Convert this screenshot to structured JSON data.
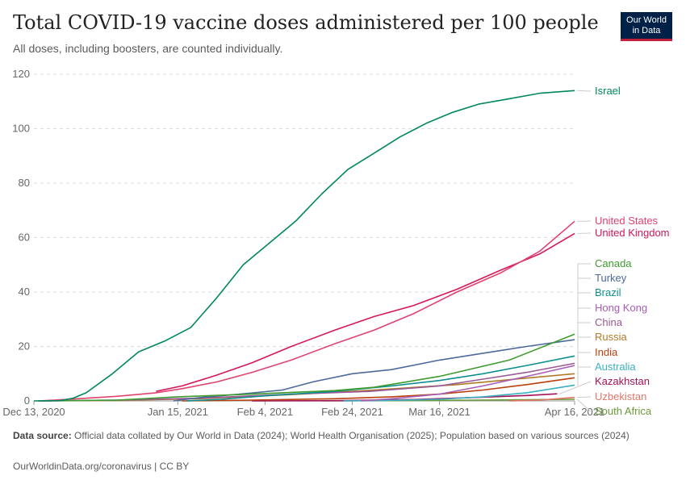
{
  "header": {
    "title": "Total COVID-19 vaccine doses administered per 100 people",
    "subtitle": "All doses, including boosters, are counted individually.",
    "logo_line1": "Our World",
    "logo_line2": "in Data"
  },
  "footer": {
    "source_label": "Data source:",
    "source_text": "Official data collated by Our World in Data (2024); World Health Organisation (2025); Population based on various sources (2024)",
    "url": "OurWorldinData.org/coronavirus | CC BY"
  },
  "chart_data": {
    "type": "line",
    "title": "Total COVID-19 vaccine doses administered per 100 people",
    "xlabel": "",
    "ylabel": "",
    "ylim": [
      0,
      120
    ],
    "yticks": [
      0,
      20,
      40,
      60,
      80,
      100,
      120
    ],
    "xticks": [
      {
        "date": "2020-12-13",
        "label": "Dec 13, 2020"
      },
      {
        "date": "2021-01-15",
        "label": "Jan 15, 2021"
      },
      {
        "date": "2021-02-04",
        "label": "Feb 4, 2021"
      },
      {
        "date": "2021-02-24",
        "label": "Feb 24, 2021"
      },
      {
        "date": "2021-03-16",
        "label": "Mar 16, 2021"
      },
      {
        "date": "2021-04-16",
        "label": "Apr 16, 2021"
      }
    ],
    "xrange": [
      "2020-12-13",
      "2021-04-16"
    ],
    "grid": "horizontal dashed",
    "legend": "right, labels at line ends",
    "series": [
      {
        "name": "Israel",
        "color": "#00875e",
        "points": [
          [
            "2020-12-13",
            0
          ],
          [
            "2020-12-19",
            0.1
          ],
          [
            "2020-12-22",
            1
          ],
          [
            "2020-12-25",
            3
          ],
          [
            "2020-12-31",
            10
          ],
          [
            "2021-01-06",
            18
          ],
          [
            "2021-01-12",
            22
          ],
          [
            "2021-01-18",
            27
          ],
          [
            "2021-01-24",
            38
          ],
          [
            "2021-01-30",
            50
          ],
          [
            "2021-02-05",
            58
          ],
          [
            "2021-02-11",
            66
          ],
          [
            "2021-02-17",
            76
          ],
          [
            "2021-02-23",
            85
          ],
          [
            "2021-03-01",
            91
          ],
          [
            "2021-03-07",
            97
          ],
          [
            "2021-03-13",
            102
          ],
          [
            "2021-03-19",
            106
          ],
          [
            "2021-03-25",
            109
          ],
          [
            "2021-04-01",
            111
          ],
          [
            "2021-04-08",
            113
          ],
          [
            "2021-04-16",
            114
          ]
        ]
      },
      {
        "name": "United States",
        "color": "#e0436f",
        "points": [
          [
            "2020-12-14",
            0
          ],
          [
            "2020-12-20",
            0.5
          ],
          [
            "2021-01-01",
            1.7
          ],
          [
            "2021-01-10",
            3
          ],
          [
            "2021-01-16",
            4.5
          ],
          [
            "2021-01-24",
            7
          ],
          [
            "2021-02-01",
            10.5
          ],
          [
            "2021-02-10",
            15
          ],
          [
            "2021-02-20",
            21
          ],
          [
            "2021-03-01",
            26
          ],
          [
            "2021-03-10",
            32
          ],
          [
            "2021-03-20",
            40
          ],
          [
            "2021-03-30",
            47
          ],
          [
            "2021-04-08",
            55
          ],
          [
            "2021-04-16",
            66
          ]
        ]
      },
      {
        "name": "United Kingdom",
        "color": "#d6175c",
        "points": [
          [
            "2021-01-10",
            3.5
          ],
          [
            "2021-01-16",
            5.5
          ],
          [
            "2021-01-24",
            9.5
          ],
          [
            "2021-02-01",
            14
          ],
          [
            "2021-02-10",
            20
          ],
          [
            "2021-02-20",
            26
          ],
          [
            "2021-03-01",
            31
          ],
          [
            "2021-03-10",
            35
          ],
          [
            "2021-03-20",
            41
          ],
          [
            "2021-03-30",
            48
          ],
          [
            "2021-04-08",
            54
          ],
          [
            "2021-04-16",
            61.5
          ]
        ]
      },
      {
        "name": "Canada",
        "color": "#3d9b2e",
        "points": [
          [
            "2020-12-14",
            0
          ],
          [
            "2021-01-01",
            0.3
          ],
          [
            "2021-01-15",
            1.5
          ],
          [
            "2021-02-01",
            2.5
          ],
          [
            "2021-02-20",
            3.8
          ],
          [
            "2021-03-01",
            5
          ],
          [
            "2021-03-16",
            9
          ],
          [
            "2021-04-01",
            15
          ],
          [
            "2021-04-16",
            24.5
          ]
        ]
      },
      {
        "name": "Turkey",
        "color": "#4c6a9c",
        "points": [
          [
            "2021-01-14",
            0
          ],
          [
            "2021-01-20",
            1.2
          ],
          [
            "2021-01-30",
            2.6
          ],
          [
            "2021-02-08",
            4
          ],
          [
            "2021-02-15",
            7
          ],
          [
            "2021-02-24",
            10
          ],
          [
            "2021-03-05",
            11.5
          ],
          [
            "2021-03-16",
            15
          ],
          [
            "2021-03-26",
            17.5
          ],
          [
            "2021-04-05",
            20
          ],
          [
            "2021-04-16",
            22.5
          ]
        ]
      },
      {
        "name": "Brazil",
        "color": "#0f8f8f",
        "points": [
          [
            "2021-01-17",
            0
          ],
          [
            "2021-01-25",
            0.6
          ],
          [
            "2021-02-05",
            2
          ],
          [
            "2021-02-20",
            3.5
          ],
          [
            "2021-03-05",
            5.5
          ],
          [
            "2021-03-16",
            7.5
          ],
          [
            "2021-03-26",
            10
          ],
          [
            "2021-04-05",
            13
          ],
          [
            "2021-04-16",
            16.5
          ]
        ]
      },
      {
        "name": "Hong Kong",
        "color": "#a85cb5",
        "points": [
          [
            "2021-02-26",
            0
          ],
          [
            "2021-03-05",
            0.8
          ],
          [
            "2021-03-16",
            2.5
          ],
          [
            "2021-03-26",
            5.5
          ],
          [
            "2021-04-05",
            9
          ],
          [
            "2021-04-16",
            13
          ]
        ]
      },
      {
        "name": "China",
        "color": "#9a5a95",
        "points": [
          [
            "2020-12-15",
            0
          ],
          [
            "2021-01-01",
            0.3
          ],
          [
            "2021-01-20",
            1
          ],
          [
            "2021-02-10",
            2.5
          ],
          [
            "2021-02-28",
            3.5
          ],
          [
            "2021-03-16",
            5.5
          ],
          [
            "2021-03-26",
            8
          ],
          [
            "2021-04-05",
            10.5
          ],
          [
            "2021-04-16",
            13.8
          ]
        ]
      },
      {
        "name": "Russia",
        "color": "#b07a27",
        "points": [
          [
            "2020-12-15",
            0
          ],
          [
            "2021-01-01",
            0.2
          ],
          [
            "2021-01-20",
            0.8
          ],
          [
            "2021-02-10",
            2.3
          ],
          [
            "2021-03-01",
            4
          ],
          [
            "2021-03-20",
            6
          ],
          [
            "2021-04-01",
            7.8
          ],
          [
            "2021-04-16",
            10
          ]
        ]
      },
      {
        "name": "India",
        "color": "#b8400c",
        "points": [
          [
            "2021-01-16",
            0
          ],
          [
            "2021-02-01",
            0.3
          ],
          [
            "2021-02-20",
            0.8
          ],
          [
            "2021-03-05",
            1.5
          ],
          [
            "2021-03-16",
            2.5
          ],
          [
            "2021-03-26",
            4
          ],
          [
            "2021-04-05",
            6
          ],
          [
            "2021-04-16",
            8.5
          ]
        ]
      },
      {
        "name": "Australia",
        "color": "#3ab0c1",
        "points": [
          [
            "2021-02-22",
            0
          ],
          [
            "2021-03-05",
            0.2
          ],
          [
            "2021-03-16",
            0.6
          ],
          [
            "2021-03-26",
            1.5
          ],
          [
            "2021-04-05",
            3
          ],
          [
            "2021-04-16",
            5.8
          ]
        ]
      },
      {
        "name": "Kazakhstan",
        "color": "#a01258",
        "points": [
          [
            "2021-02-01",
            0
          ],
          [
            "2021-02-20",
            0.1
          ],
          [
            "2021-03-10",
            0.5
          ],
          [
            "2021-03-25",
            1.3
          ],
          [
            "2021-04-05",
            2
          ],
          [
            "2021-04-12",
            2.6
          ]
        ]
      },
      {
        "name": "Uzbekistan",
        "color": "#e0776a",
        "points": [
          [
            "2021-04-01",
            0
          ],
          [
            "2021-04-08",
            0.3
          ],
          [
            "2021-04-16",
            1.3
          ]
        ]
      },
      {
        "name": "South Africa",
        "color": "#6b9a3a",
        "points": [
          [
            "2021-02-17",
            0
          ],
          [
            "2021-03-05",
            0.1
          ],
          [
            "2021-03-25",
            0.3
          ],
          [
            "2021-04-16",
            0.6
          ]
        ]
      }
    ]
  }
}
